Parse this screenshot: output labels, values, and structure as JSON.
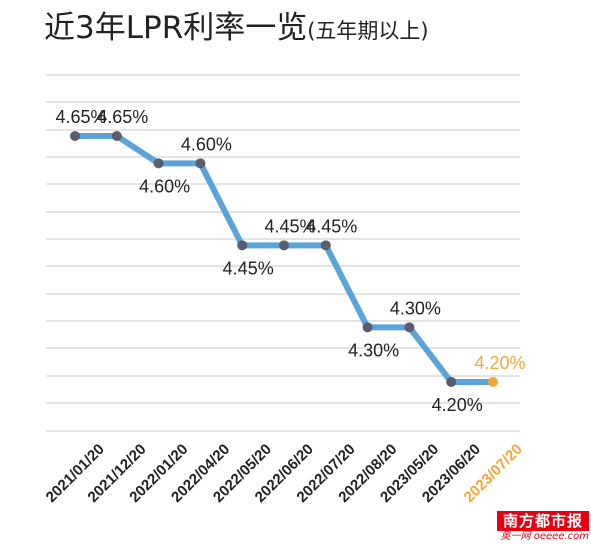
{
  "title": "近3年LPR利率一览",
  "subtitle": "(五年期以上)",
  "colors": {
    "line": "#5ba3d9",
    "point": "#595d6e",
    "highlight": "#f3a53b",
    "grid": "#c9c9c9",
    "text": "#222222"
  },
  "chart_data": {
    "type": "line",
    "title": "近3年LPR利率一览(五年期以上)",
    "xlabel": "",
    "ylabel": "",
    "unit": "%",
    "grid": true,
    "categories": [
      "2021/01/20",
      "2021/12/20",
      "2022/01/20",
      "2022/04/20",
      "2022/05/20",
      "2022/06/20",
      "2022/07/20",
      "2022/08/20",
      "2023/05/20",
      "2023/06/20",
      "2023/07/20"
    ],
    "values": [
      4.65,
      4.65,
      4.6,
      4.6,
      4.45,
      4.45,
      4.45,
      4.3,
      4.3,
      4.2,
      4.2
    ],
    "labels": [
      "4.65%",
      "4.65%",
      "4.60%",
      "4.60%",
      "4.45%",
      "4.45%",
      "4.45%",
      "4.30%",
      "4.30%",
      "4.20%",
      "4.20%"
    ],
    "label_positions": [
      "above",
      "above",
      "below",
      "above",
      "below",
      "above",
      "above",
      "below",
      "above",
      "below",
      "above"
    ],
    "highlight_index": 10
  },
  "watermark": {
    "brand": "南方都市报",
    "url": "奥一网 oeeee.com"
  }
}
